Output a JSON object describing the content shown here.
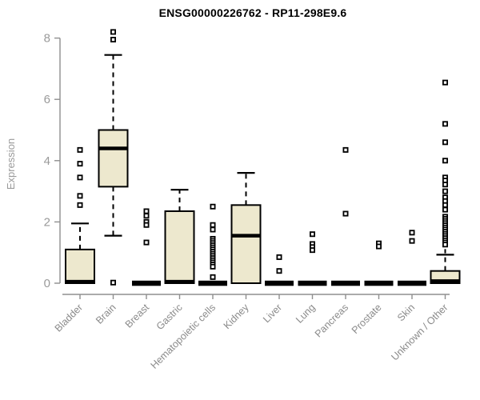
{
  "title": "ENSG00000226762 - RP11-298E9.6",
  "ylabel": "Expression",
  "colors": {
    "box_fill": "#EDE8CE",
    "box_stroke": "#000000",
    "axis": "#8f8f8f",
    "tick_label": "#9a9a9a",
    "title_color": "#000000",
    "background": "#ffffff"
  },
  "chart_data": {
    "type": "boxplot",
    "title": "ENSG00000226762 - RP11-298E9.6",
    "xlabel": "",
    "ylabel": "Expression",
    "ylim": [
      0,
      8
    ],
    "yticks": [
      0,
      2,
      4,
      6,
      8
    ],
    "grid": false,
    "legend": false,
    "categories": [
      "Bladder",
      "Brain",
      "Breast",
      "Gastric",
      "Hematopoietic cells",
      "Kidney",
      "Liver",
      "Lung",
      "Pancreas",
      "Prostate",
      "Skin",
      "Unknown / Other"
    ],
    "series": [
      {
        "category": "Bladder",
        "flat": false,
        "stats": {
          "low": 0,
          "q1": 0,
          "median": 0.05,
          "q3": 1.1,
          "high": 1.95
        },
        "outliers": [
          4.35,
          3.9,
          3.45,
          2.85,
          2.55
        ]
      },
      {
        "category": "Brain",
        "flat": false,
        "stats": {
          "low": 1.55,
          "q1": 3.15,
          "median": 4.4,
          "q3": 5.0,
          "high": 7.45
        },
        "outliers": [
          8.2,
          7.95,
          0.02
        ]
      },
      {
        "category": "Breast",
        "flat": true,
        "outliers": [
          2.35,
          2.2,
          2.0,
          1.9,
          1.33
        ]
      },
      {
        "category": "Gastric",
        "flat": false,
        "stats": {
          "low": 0,
          "q1": 0,
          "median": 0.05,
          "q3": 2.35,
          "high": 3.05
        },
        "outliers": []
      },
      {
        "category": "Hematopoietic cells",
        "flat": true,
        "outliers": [
          2.5,
          1.9,
          1.75,
          1.45,
          1.38,
          1.31,
          1.24,
          1.17,
          1.1,
          1.03,
          0.96,
          0.89,
          0.82,
          0.75,
          0.68,
          0.61,
          0.54,
          0.2
        ]
      },
      {
        "category": "Kidney",
        "flat": false,
        "stats": {
          "low": 0,
          "q1": 0,
          "median": 1.55,
          "q3": 2.55,
          "high": 3.6
        },
        "outliers": []
      },
      {
        "category": "Liver",
        "flat": true,
        "outliers": [
          0.85,
          0.4
        ]
      },
      {
        "category": "Lung",
        "flat": true,
        "outliers": [
          1.6,
          1.28,
          1.18,
          1.08
        ]
      },
      {
        "category": "Pancreas",
        "flat": true,
        "outliers": [
          4.35,
          2.27
        ]
      },
      {
        "category": "Prostate",
        "flat": true,
        "outliers": [
          1.3,
          1.2
        ]
      },
      {
        "category": "Skin",
        "flat": true,
        "outliers": [
          1.65,
          1.38
        ]
      },
      {
        "category": "Unknown / Other",
        "flat": false,
        "cap_cross": true,
        "stats": {
          "low": 0,
          "q1": 0,
          "median": 0.07,
          "q3": 0.4,
          "high": 0.93
        },
        "outliers": [
          6.55,
          5.2,
          4.6,
          4.0,
          3.45,
          3.35,
          3.22,
          3.0,
          2.8,
          2.68,
          2.55,
          2.4,
          2.17,
          2.1,
          2.03,
          1.96,
          1.89,
          1.82,
          1.75,
          1.68,
          1.61,
          1.54,
          1.47,
          1.4,
          1.33,
          1.26
        ]
      }
    ]
  }
}
